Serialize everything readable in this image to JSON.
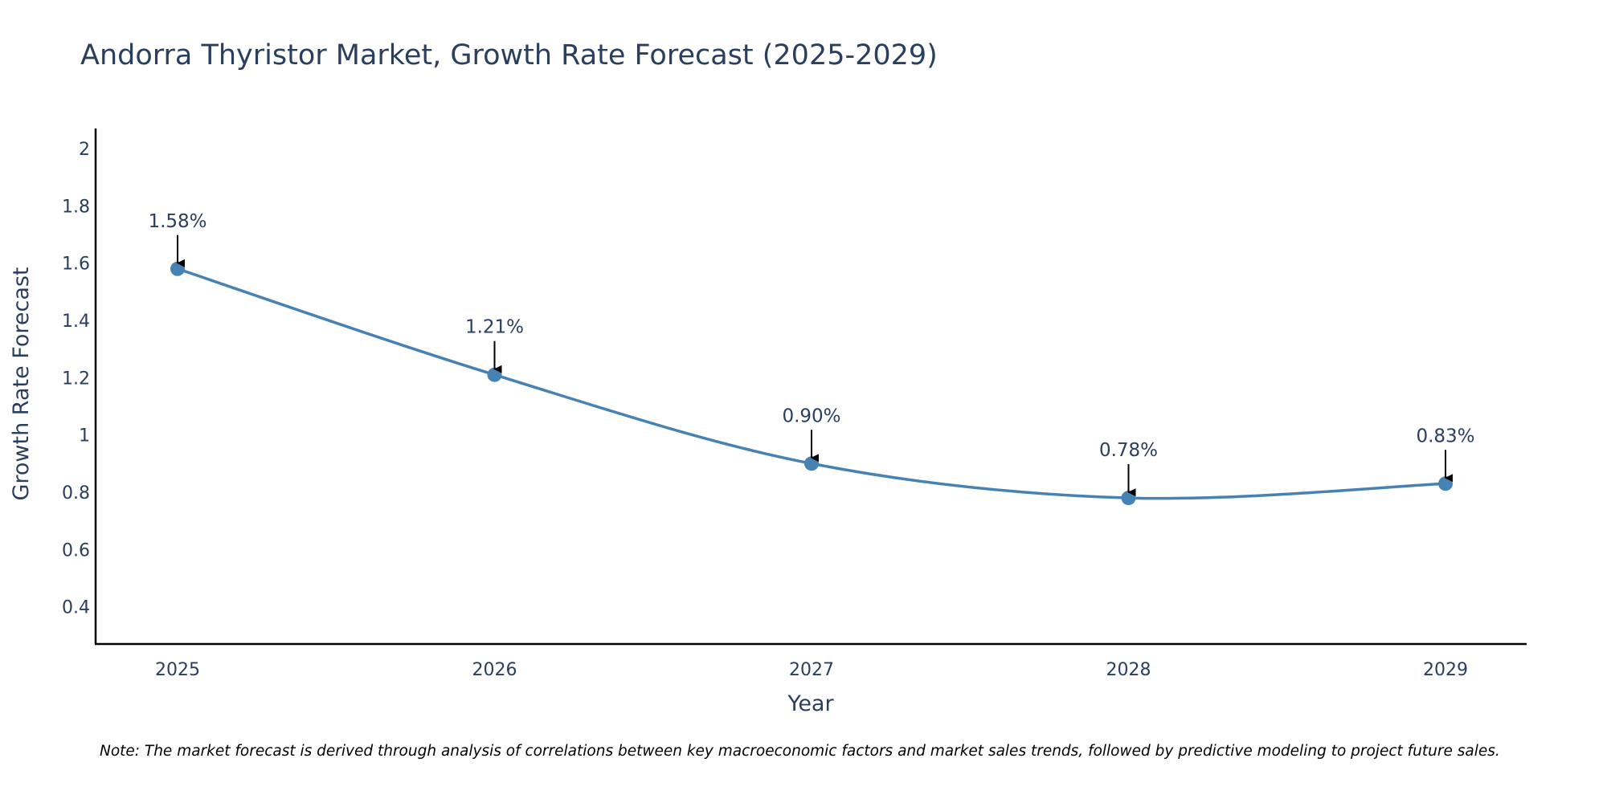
{
  "chart_data": {
    "type": "line",
    "title": "Andorra Thyristor Market, Growth Rate Forecast (2025-2029)",
    "xlabel": "Year",
    "ylabel": "Growth Rate Forecast",
    "categories": [
      "2025",
      "2026",
      "2027",
      "2028",
      "2029"
    ],
    "series": [
      {
        "name": "Growth Rate Forecast",
        "values": [
          1.58,
          1.21,
          0.9,
          0.78,
          0.83
        ],
        "labels": [
          "1.58%",
          "1.21%",
          "0.90%",
          "0.78%",
          "0.83%"
        ]
      }
    ],
    "ylim": [
      0.27,
      2.07
    ],
    "yticks": [
      0.4,
      0.6,
      0.8,
      1,
      1.2,
      1.4,
      1.6,
      1.8,
      2
    ],
    "ytick_labels": [
      "0.4",
      "0.6",
      "0.8",
      "1",
      "1.2",
      "1.4",
      "1.6",
      "1.8",
      "2"
    ],
    "grid": false,
    "line_color": "#4682b4",
    "marker_color": "#4682b4",
    "annotation_arrow_color": "#000000",
    "note": "Note: The market forecast is derived through analysis of correlations between key macroeconomic factors and market sales trends, followed by predictive modeling to project future sales."
  }
}
